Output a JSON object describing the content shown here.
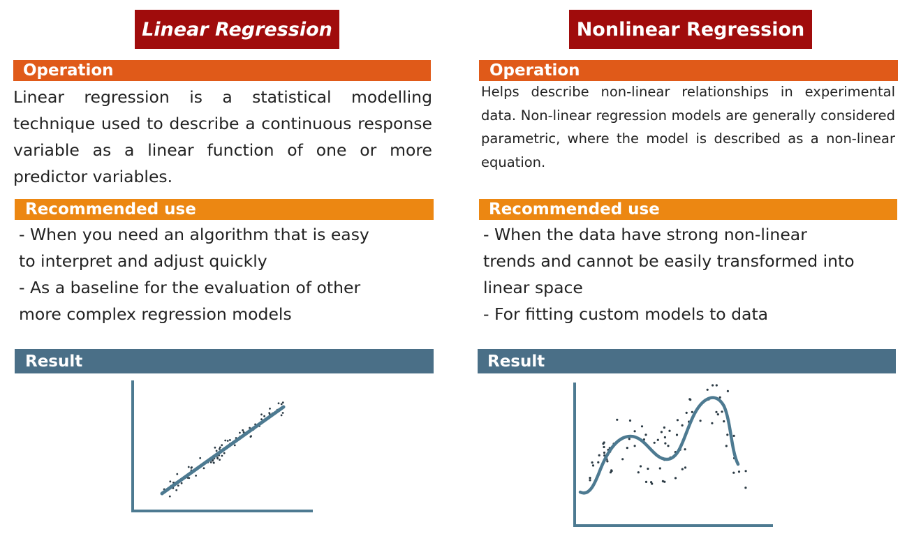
{
  "linear": {
    "title": "Linear Regression",
    "operation_header": "Operation",
    "operation_text": "Linear regression is a statistical modelling technique used to describe a continuous response variable as a linear function of one or more predictor variables.",
    "recommended_header": "Recommended use",
    "recommended_lines": [
      "- When you need an algorithm that is easy",
      "to interpret and adjust quickly",
      "- As a baseline for the evaluation of other",
      "more complex regression models"
    ],
    "result_header": "Result"
  },
  "nonlinear": {
    "title": "Nonlinear Regression",
    "operation_header": "Operation",
    "operation_text": "Helps describe non-linear relationships in experimental data. Non-linear regression models are generally considered parametric, where the model is described as a non-linear equation.",
    "recommended_header": "Recommended use",
    "recommended_lines": [
      "- When the data have strong non-linear",
      "trends and cannot be easily transformed into",
      "linear space",
      "- For fitting custom models to data"
    ],
    "result_header": "Result"
  },
  "colors": {
    "title_bg": "#a00c0c",
    "operation_bg": "#e05a19",
    "recommended_bg": "#ec8712",
    "result_bg": "#4a6f87",
    "plot_line": "#4d7a91",
    "plot_points": "#2b3a44"
  }
}
